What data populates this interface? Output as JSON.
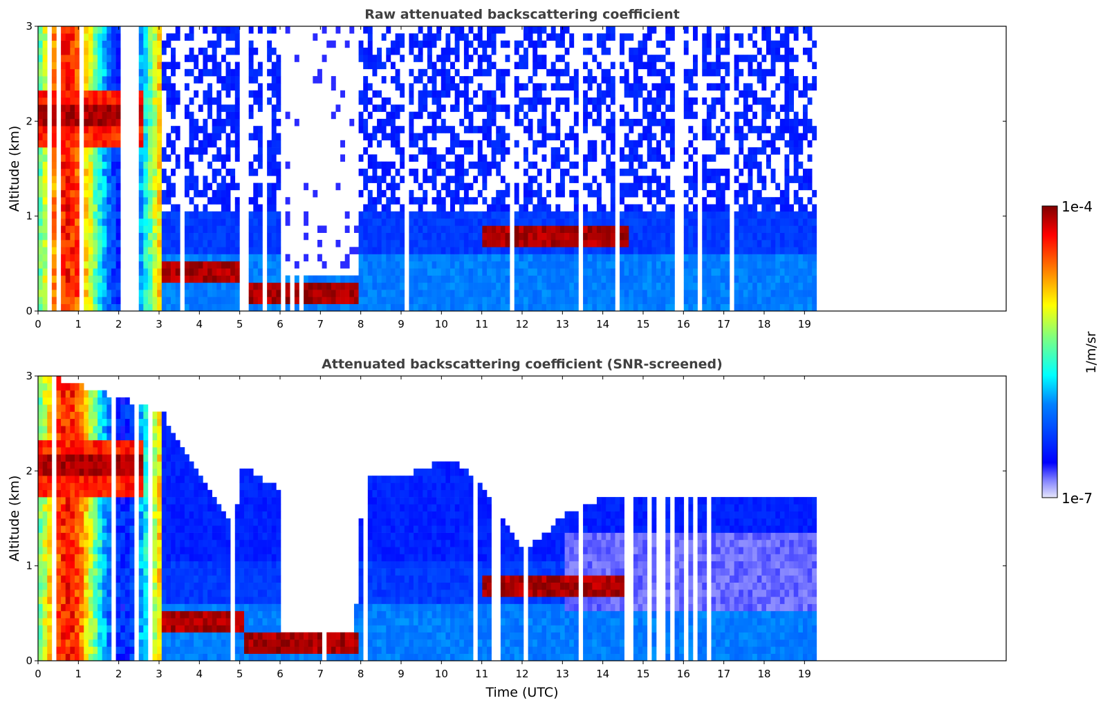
{
  "chart_data": [
    {
      "type": "heatmap",
      "title": "Raw attenuated backscattering coefficient",
      "xlabel": "",
      "ylabel": "Altitude (km)",
      "xlim": [
        0,
        24
      ],
      "ylim": [
        0,
        3
      ],
      "xticks": [
        "0",
        "1",
        "2",
        "3",
        "4",
        "5",
        "6",
        "7",
        "8",
        "9",
        "10",
        "11",
        "12",
        "13",
        "14",
        "15",
        "16",
        "17",
        "18",
        "19"
      ],
      "yticks": [
        "0",
        "1",
        "2",
        "3"
      ],
      "data_extent_hours": [
        0,
        19.3
      ],
      "layers": [
        {
          "name": "aerosol/cloud base",
          "t_start": 3.0,
          "t_end": 5.0,
          "altitude_km": 0.4
        },
        {
          "name": "aerosol/cloud base",
          "t_start": 5.0,
          "t_end": 7.9,
          "altitude_km": 0.15
        },
        {
          "name": "cloud layer",
          "t_start": 11.0,
          "t_end": 14.6,
          "altitude_km": 0.75
        },
        {
          "name": "elevated aerosol",
          "t_start": 0.0,
          "t_end": 2.6,
          "altitude_km": 2.0
        }
      ]
    },
    {
      "type": "heatmap",
      "title": "Attenuated backscattering coefficient (SNR-screened)",
      "xlabel": "Time (UTC)",
      "ylabel": "Altitude (km)",
      "xlim": [
        0,
        24
      ],
      "ylim": [
        0,
        3
      ],
      "xticks": [
        "0",
        "1",
        "2",
        "3",
        "4",
        "5",
        "6",
        "7",
        "8",
        "9",
        "10",
        "11",
        "12",
        "13",
        "14",
        "15",
        "16",
        "17",
        "18",
        "19"
      ],
      "yticks": [
        "0",
        "1",
        "2",
        "3"
      ],
      "data_extent_hours": [
        0,
        19.3
      ],
      "valid_top_km": [
        [
          0,
          3.0
        ],
        [
          3.0,
          2.6
        ],
        [
          3.8,
          2.0
        ],
        [
          4.8,
          1.4
        ],
        [
          5.0,
          2.0
        ],
        [
          5.9,
          1.8
        ],
        [
          6.0,
          0.25
        ],
        [
          7.8,
          0.25
        ],
        [
          8.0,
          1.9
        ],
        [
          9.0,
          1.9
        ],
        [
          10.2,
          2.1
        ],
        [
          11.0,
          1.8
        ],
        [
          12.0,
          1.1
        ],
        [
          13.0,
          1.5
        ],
        [
          14.0,
          1.7
        ],
        [
          15.5,
          1.7
        ],
        [
          19.3,
          1.7
        ]
      ]
    }
  ],
  "colorbar": {
    "label": "1/m/sr",
    "max_label": "1e-4",
    "min_label": "1e-7",
    "colormap": [
      "#e6e6fa",
      "#0000ff",
      "#00bfff",
      "#00ffff",
      "#7fff7f",
      "#ffff00",
      "#ff7f00",
      "#ff0000",
      "#7f0000"
    ]
  }
}
